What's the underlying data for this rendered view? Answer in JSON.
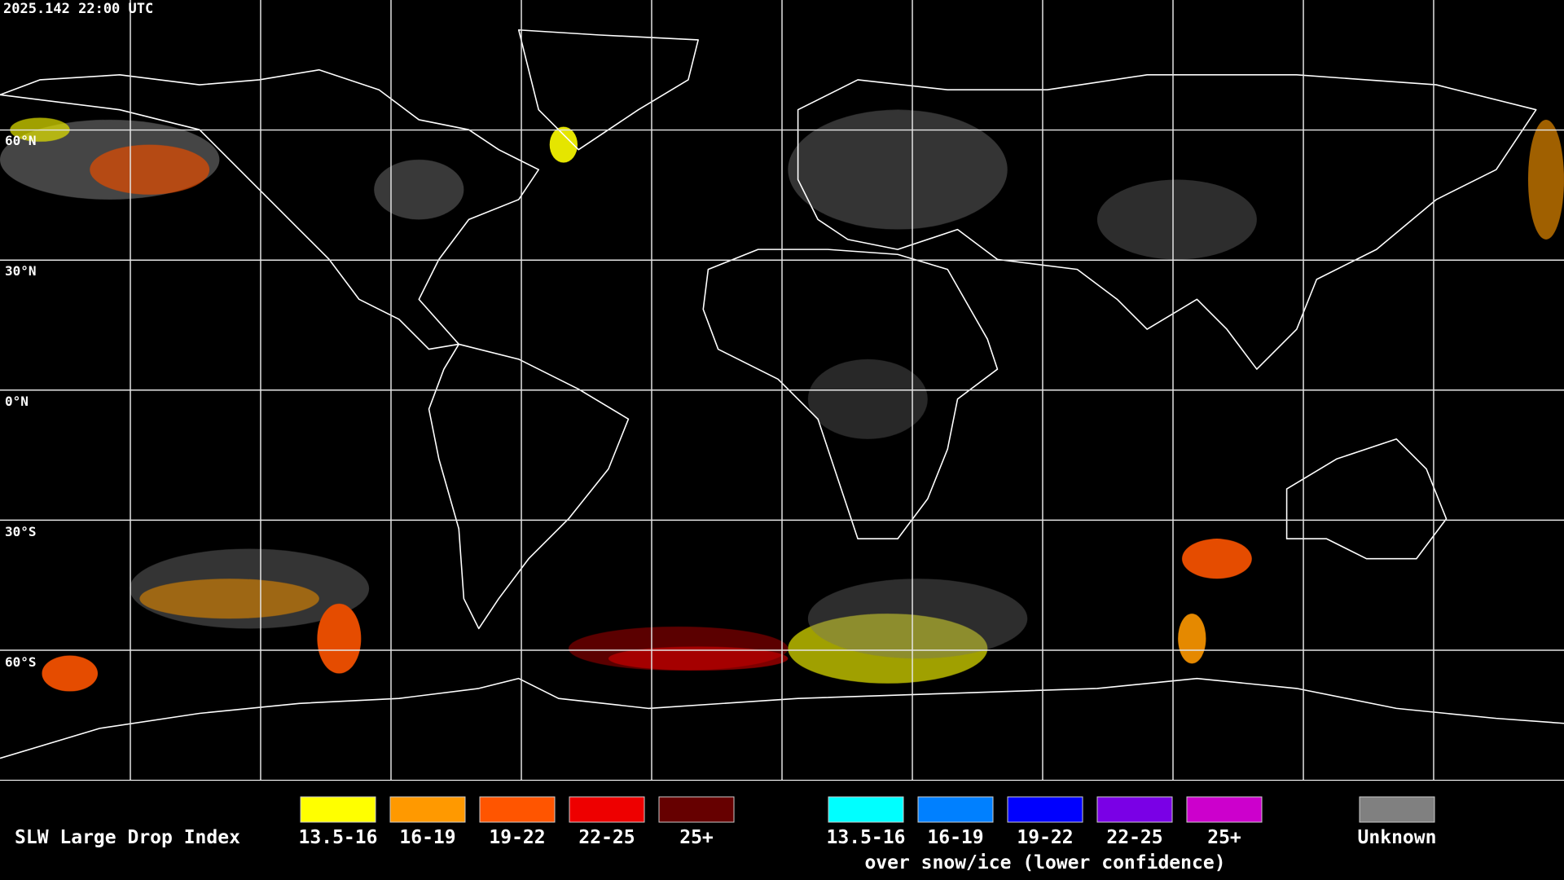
{
  "timestamp": "2025.142 22:00 UTC",
  "lat_labels": [
    "60°N",
    "30°N",
    "0°N",
    "30°S",
    "60°S"
  ],
  "legend": {
    "title": "SLW Large Drop Index",
    "groups": [
      {
        "items": [
          {
            "label": "13.5-16",
            "color": "#ffff00"
          },
          {
            "label": "16-19",
            "color": "#ff9900"
          },
          {
            "label": "19-22",
            "color": "#ff5500"
          },
          {
            "label": "22-25",
            "color": "#ee0000"
          },
          {
            "label": "25+",
            "color": "#660000"
          }
        ]
      },
      {
        "items": [
          {
            "label": "13.5-16",
            "color": "#00ffff"
          },
          {
            "label": "16-19",
            "color": "#0080ff"
          },
          {
            "label": "19-22",
            "color": "#0000ff"
          },
          {
            "label": "22-25",
            "color": "#7a00e6"
          },
          {
            "label": "25+",
            "color": "#cc00cc"
          }
        ],
        "caption": "over snow/ice (lower confidence)"
      },
      {
        "items": [
          {
            "label": "Unknown",
            "color": "#808080"
          }
        ]
      }
    ]
  }
}
